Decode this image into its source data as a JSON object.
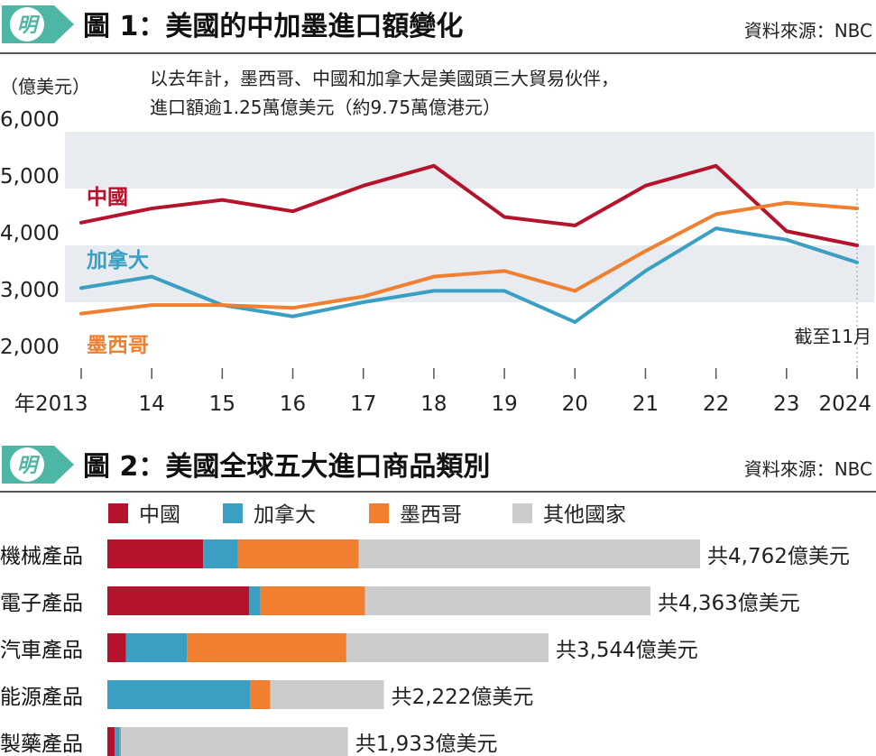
{
  "colors": {
    "china": "#b5122b",
    "canada": "#3a9fc2",
    "mexico": "#f07f30",
    "others": "#cccccc",
    "band": "#e8ebef",
    "logo": "#4db6a5"
  },
  "chart1": {
    "logo": "明",
    "title": "圖 1：美國的中加墨進口額變化",
    "source": "資料來源：NBC",
    "unit": "（億美元）",
    "note_line1": "以去年計，墨西哥、中國和加拿大是美國頭三大貿易伙伴，",
    "note_line2": "進口額逾1.25萬億美元（約9.75萬億港元）",
    "annotation": "截至11月"
  },
  "chart2": {
    "logo": "明",
    "title": "圖 2：美國全球五大進口商品類別",
    "source": "資料來源：NBC"
  },
  "chart_data": [
    {
      "type": "line",
      "x": [
        "年2013",
        "14",
        "15",
        "16",
        "17",
        "18",
        "19",
        "20",
        "21",
        "22",
        "23",
        "2024"
      ],
      "ylim": [
        2000,
        6000
      ],
      "yticks": [
        "2,000",
        "3,000",
        "4,000",
        "5,000",
        "6,000"
      ],
      "ytick_values": [
        2000,
        3000,
        4000,
        5000,
        6000
      ],
      "series": [
        {
          "name": "中國",
          "color": "#b5122b",
          "values": [
            4400,
            4650,
            4800,
            4600,
            5050,
            5400,
            4500,
            4350,
            5050,
            5400,
            4250,
            4000
          ]
        },
        {
          "name": "加拿大",
          "color": "#3a9fc2",
          "values": [
            3250,
            3450,
            2950,
            2750,
            3000,
            3200,
            3200,
            2650,
            3550,
            4300,
            4100,
            3700
          ]
        },
        {
          "name": "墨西哥",
          "color": "#f07f30",
          "values": [
            2800,
            2950,
            2950,
            2900,
            3100,
            3450,
            3550,
            3200,
            3900,
            4550,
            4750,
            4650
          ]
        }
      ]
    },
    {
      "type": "bar",
      "stacked": true,
      "orientation": "horizontal",
      "legend": [
        "中國",
        "加拿大",
        "墨西哥",
        "其他國家"
      ],
      "categories": [
        "機械產品",
        "電子產品",
        "汽車產品",
        "能源產品",
        "製藥產品"
      ],
      "totals": [
        4762,
        4363,
        3544,
        2222,
        1933
      ],
      "total_labels": [
        "共4,762億美元",
        "共4,363億美元",
        "共3,544億美元",
        "共2,222億美元",
        "共1,933億美元"
      ],
      "series": [
        {
          "name": "中國",
          "color": "#b5122b",
          "values": [
            770,
            1140,
            150,
            0,
            60
          ]
        },
        {
          "name": "加拿大",
          "color": "#3a9fc2",
          "values": [
            280,
            90,
            490,
            1150,
            40
          ]
        },
        {
          "name": "墨西哥",
          "color": "#f07f30",
          "values": [
            970,
            840,
            1280,
            160,
            10
          ]
        },
        {
          "name": "其他國家",
          "color": "#cccccc",
          "values": [
            2742,
            2293,
            1624,
            912,
            1823
          ]
        }
      ]
    }
  ]
}
